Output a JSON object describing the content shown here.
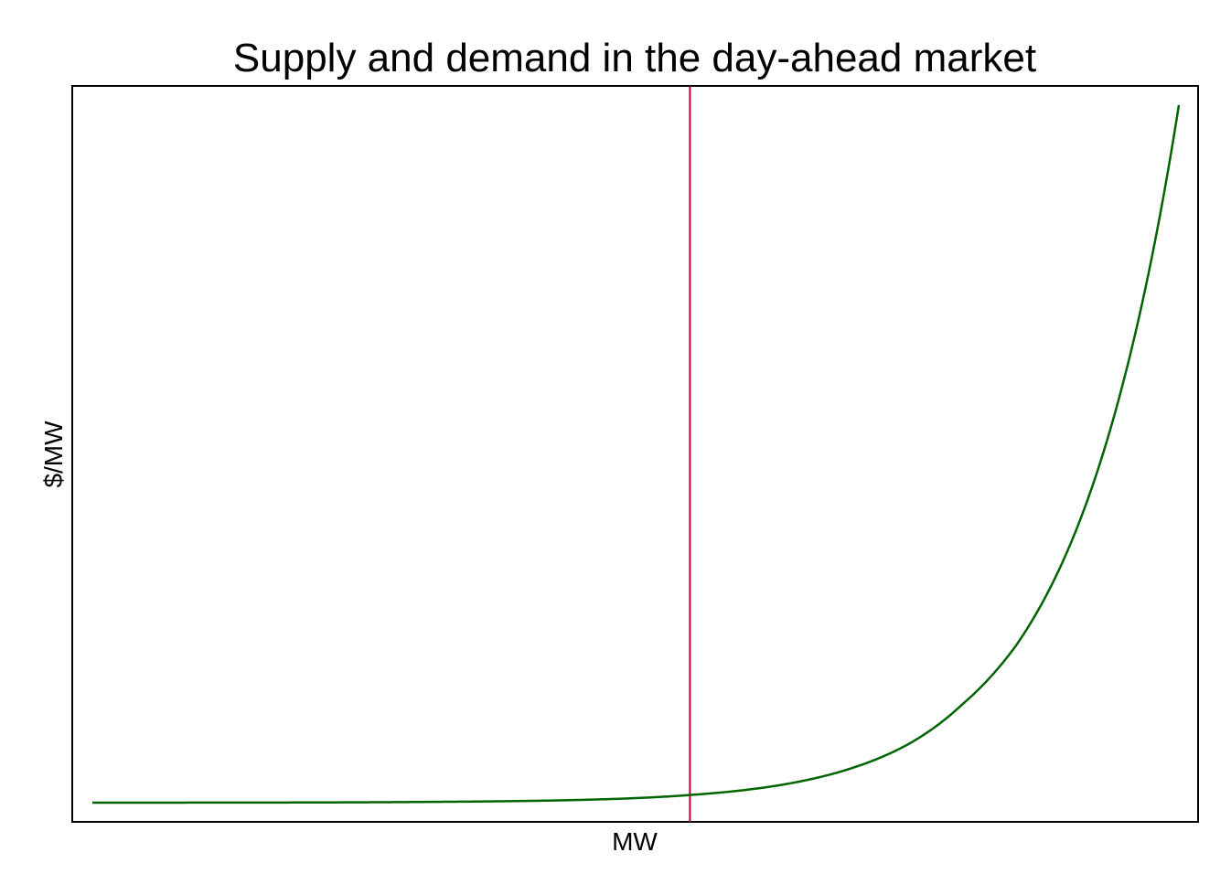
{
  "chart_data": {
    "type": "line",
    "title": "Supply and demand in the day-ahead market",
    "xlabel": "MW",
    "ylabel": "$/MW",
    "xlim": [
      0,
      1
    ],
    "ylim": [
      0,
      1
    ],
    "x_ticks_shown": false,
    "y_ticks_shown": false,
    "grid": false,
    "legend": "none",
    "series": [
      {
        "color": "#006400",
        "x": [
          0.0,
          0.1,
          0.2,
          0.3,
          0.4,
          0.45,
          0.5,
          0.55,
          0.6,
          0.65,
          0.7,
          0.75,
          0.8,
          0.85,
          0.9,
          0.95,
          1.0
        ],
        "y": [
          0.0,
          0.0001,
          0.0003,
          0.001,
          0.0025,
          0.004,
          0.0065,
          0.011,
          0.018,
          0.03,
          0.05,
          0.083,
          0.14,
          0.225,
          0.37,
          0.61,
          1.0
        ]
      }
    ],
    "vertical_lines": [
      {
        "x": 0.55,
        "color": "#c0003c"
      }
    ]
  }
}
